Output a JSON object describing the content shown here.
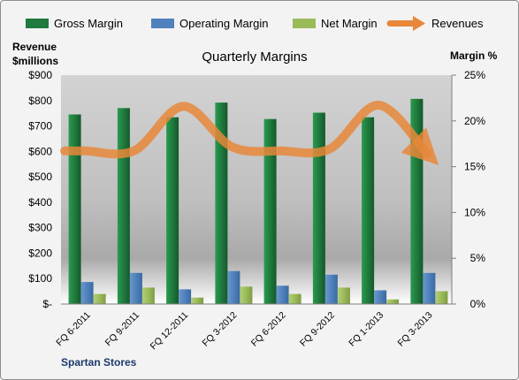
{
  "chart_data": {
    "type": "bar",
    "title": "Quarterly Margins",
    "source_label": "Spartan Stores",
    "y_left": {
      "label_line1": "Revenue",
      "label_line2": "$millions",
      "ticks": [
        "$-",
        "$100",
        "$200",
        "$300",
        "$400",
        "$500",
        "$600",
        "$700",
        "$800",
        "$900"
      ],
      "range": [
        0,
        900
      ]
    },
    "y_right": {
      "label": "Margin %",
      "ticks": [
        "0%",
        "5%",
        "10%",
        "15%",
        "20%",
        "25%"
      ],
      "range": [
        0,
        25
      ]
    },
    "categories": [
      "FQ 6-2011",
      "FQ 9-2011",
      "FQ 12-2011",
      "FQ 3-2012",
      "FQ 6-2012",
      "FQ 9-2012",
      "FQ 1-2013",
      "FQ 3-2013"
    ],
    "series": [
      {
        "name": "Gross Margin",
        "axis": "right",
        "color": "#1f7a3d",
        "values": [
          20.7,
          21.4,
          20.4,
          22.0,
          20.2,
          20.9,
          20.4,
          22.4
        ]
      },
      {
        "name": "Operating Margin",
        "axis": "right",
        "color": "#4f81bd",
        "values": [
          2.4,
          3.4,
          1.6,
          3.6,
          2.0,
          3.2,
          1.5,
          3.4
        ]
      },
      {
        "name": "Net Margin",
        "axis": "right",
        "color": "#9bbb59",
        "values": [
          1.1,
          1.8,
          0.7,
          1.9,
          1.1,
          1.8,
          0.5,
          1.4
        ]
      },
      {
        "name": "Revenues",
        "axis": "left",
        "type": "line",
        "color": "#e8873a",
        "values": [
          602,
          603,
          777,
          618,
          602,
          610,
          782,
          590
        ]
      }
    ],
    "legend_position": "top",
    "grid": false
  }
}
